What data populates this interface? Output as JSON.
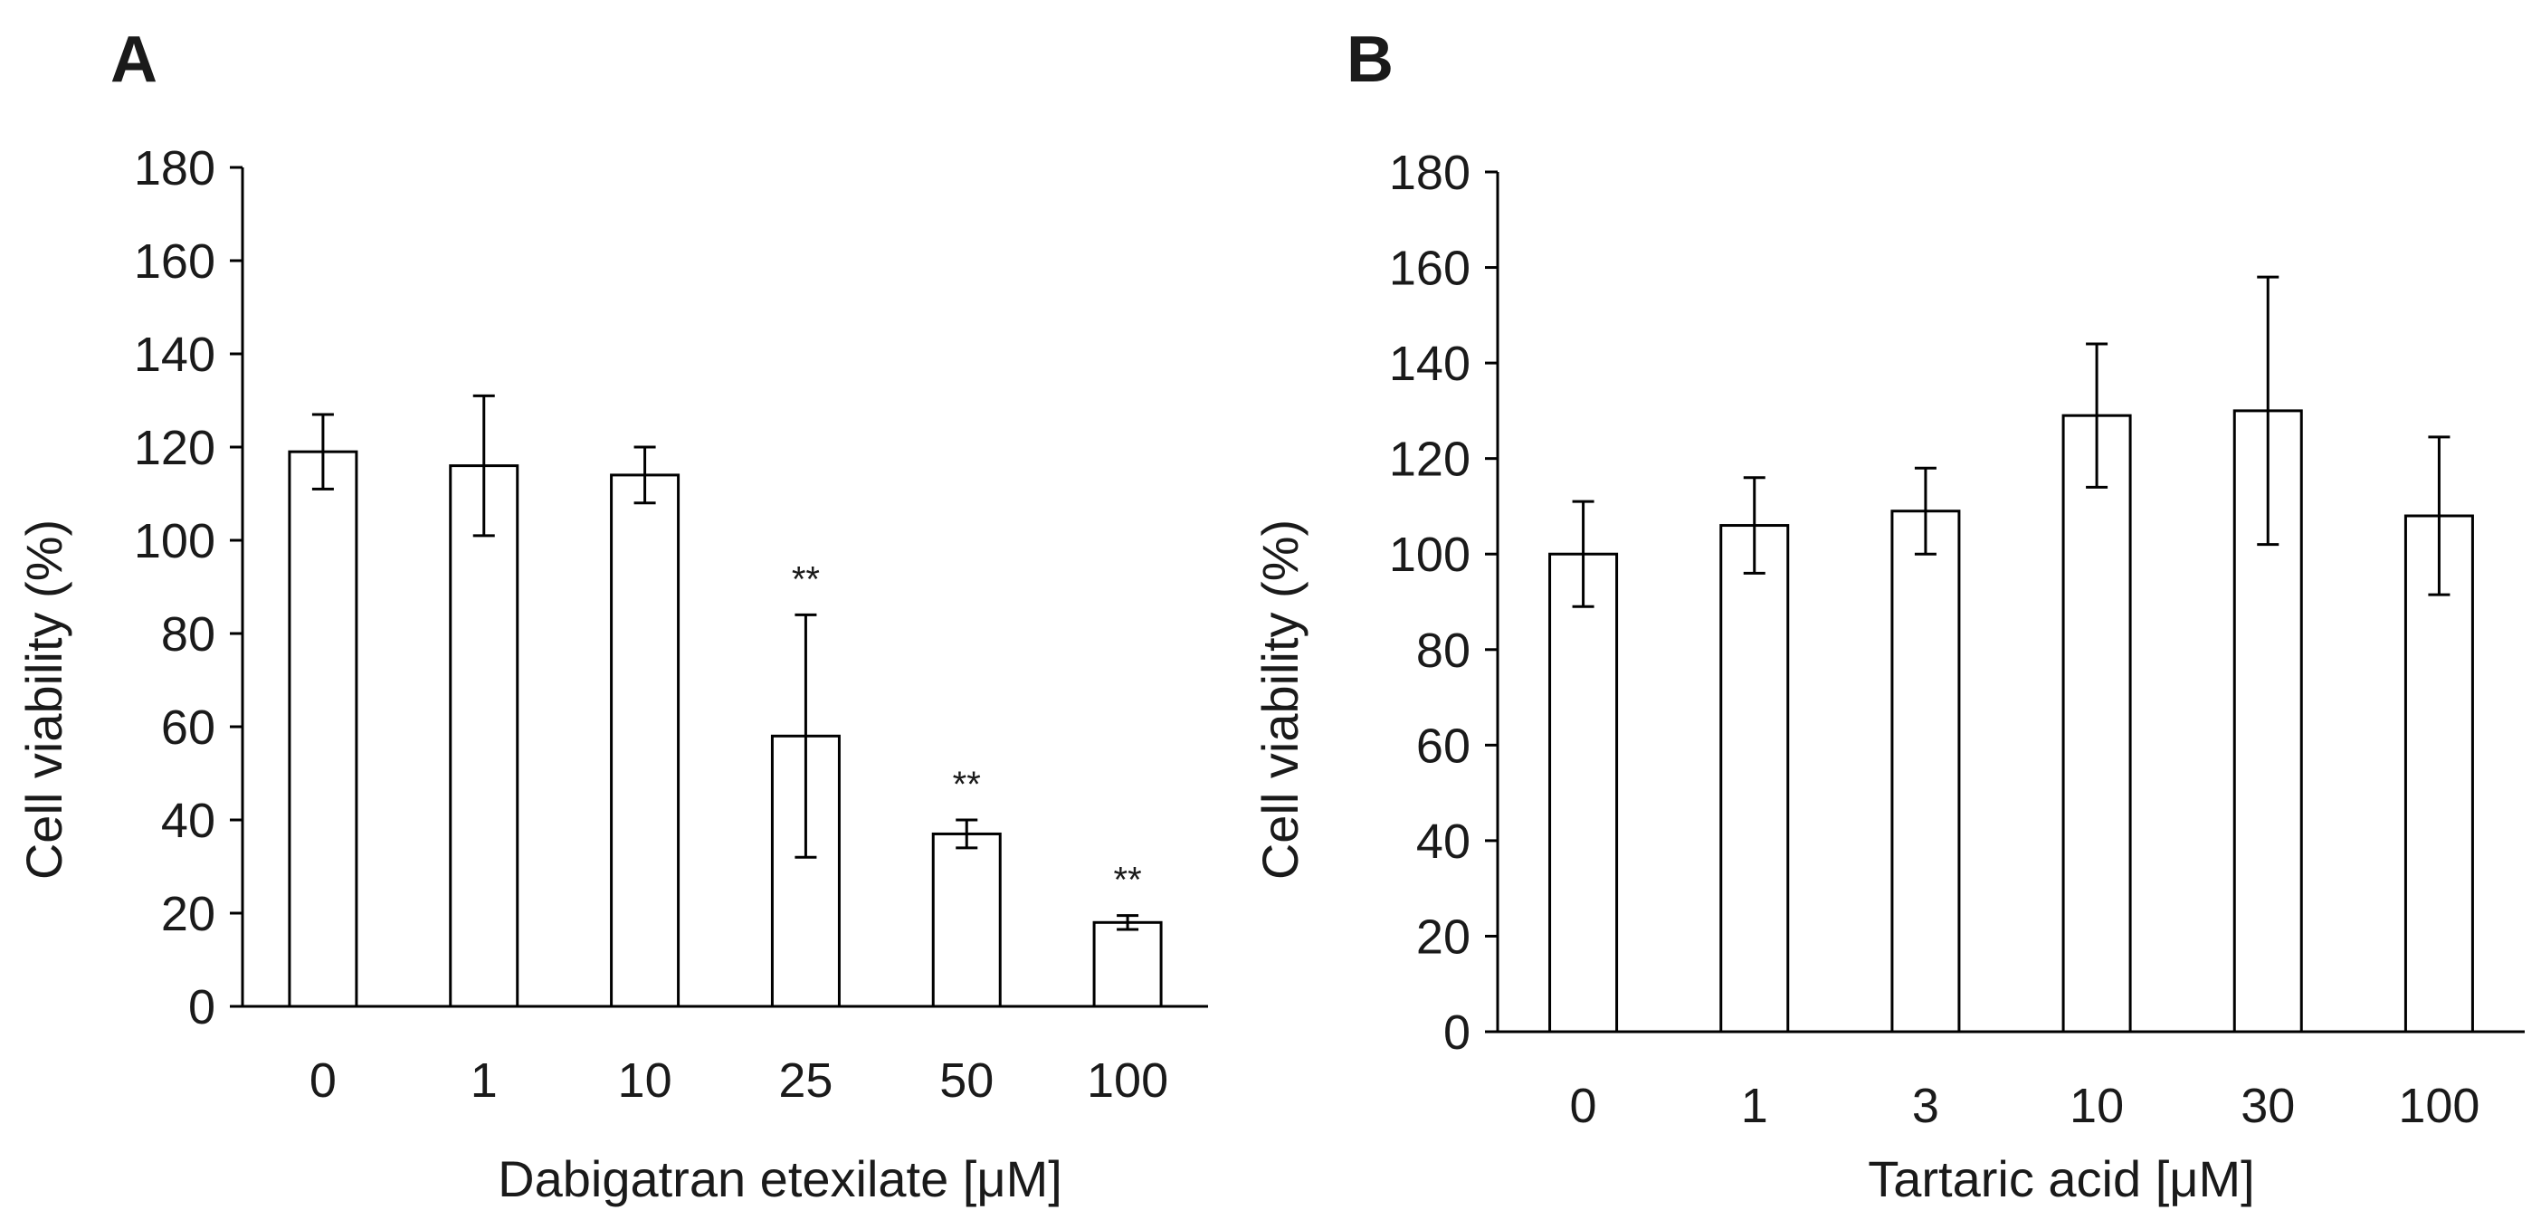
{
  "chart_data": [
    {
      "type": "bar",
      "panel": "A",
      "categories": [
        "0",
        "1",
        "10",
        "25",
        "50",
        "100"
      ],
      "values": [
        119,
        116,
        114,
        58,
        37,
        18
      ],
      "errors": [
        8,
        15,
        6,
        26,
        3,
        1.5
      ],
      "significance": [
        "",
        "",
        "",
        "**",
        "**",
        "**"
      ],
      "title": "",
      "xlabel": "Dabigatran etexilate [μM]",
      "ylabel": "Cell viability (%)",
      "ylim": [
        0,
        180
      ],
      "yticks": [
        "0",
        "20",
        "40",
        "60",
        "80",
        "100",
        "120",
        "140",
        "160",
        "180"
      ],
      "grid": false
    },
    {
      "type": "bar",
      "panel": "B",
      "categories": [
        "0",
        "1",
        "3",
        "10",
        "30",
        "100"
      ],
      "values": [
        100,
        106,
        109,
        129,
        130,
        108
      ],
      "errors": [
        11,
        10,
        9,
        15,
        28,
        16.5
      ],
      "significance": [
        "",
        "",
        "",
        "",
        "",
        ""
      ],
      "title": "",
      "xlabel": "Tartaric acid [μM]",
      "ylabel": "Cell viability (%)",
      "ylim": [
        0,
        180
      ],
      "yticks": [
        "0",
        "20",
        "40",
        "60",
        "80",
        "100",
        "120",
        "140",
        "160",
        "180"
      ],
      "grid": false
    }
  ]
}
